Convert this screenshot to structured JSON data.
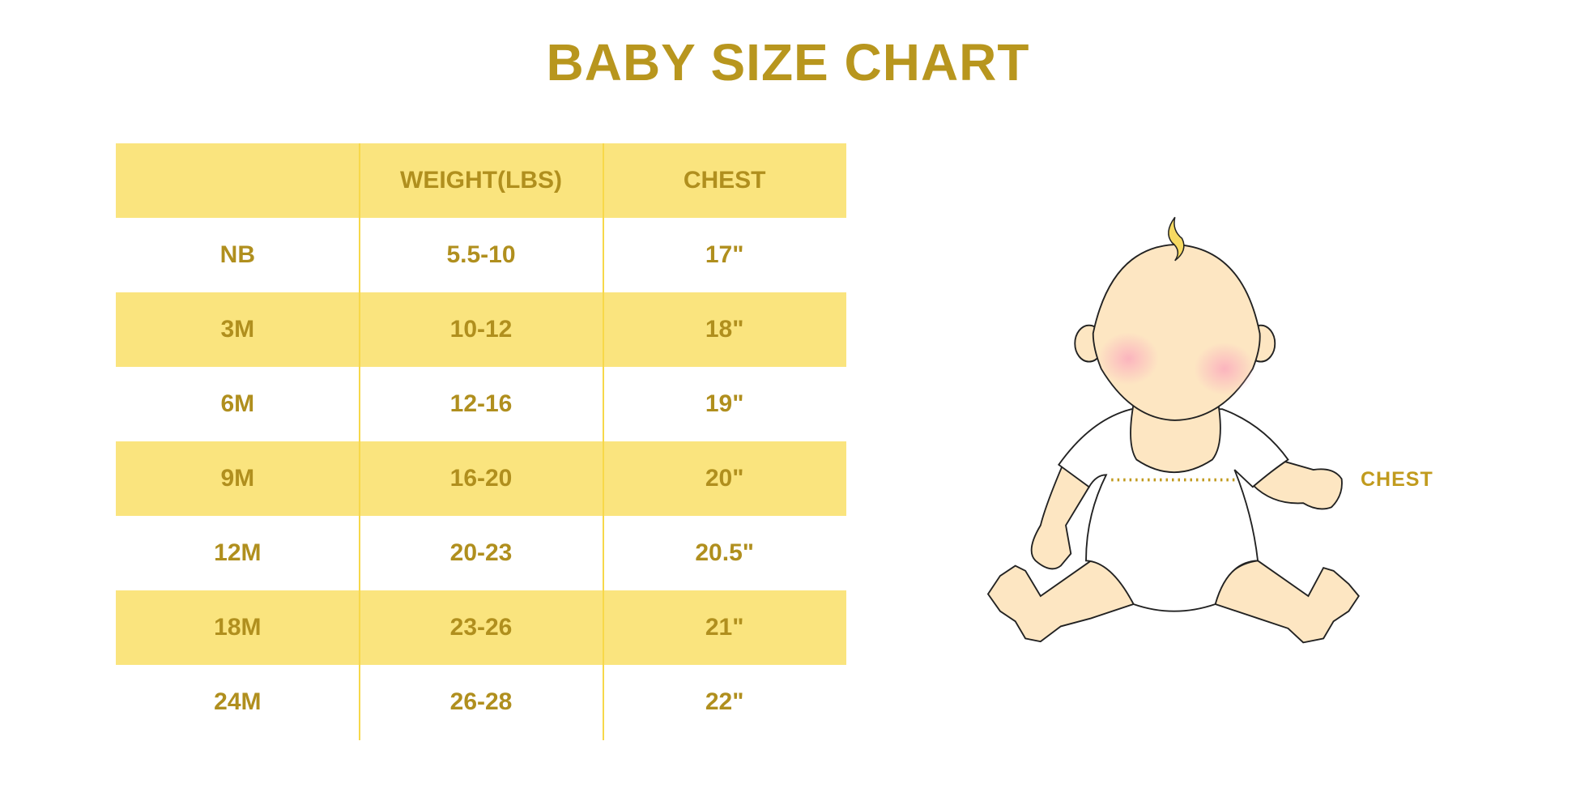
{
  "title": "BABY SIZE CHART",
  "colors": {
    "text": "#B08F1E",
    "row_shade": "#FAE47E",
    "divider": "#F7D84A"
  },
  "table": {
    "headers": [
      "",
      "WEIGHT(LBS)",
      "CHEST"
    ],
    "rows": [
      [
        "NB",
        "5.5-10",
        "17\""
      ],
      [
        "3M",
        "10-12",
        "18\""
      ],
      [
        "6M",
        "12-16",
        "19\""
      ],
      [
        "9M",
        "16-20",
        "20\""
      ],
      [
        "12M",
        "20-23",
        "20.5\""
      ],
      [
        "18M",
        "23-26",
        "21\""
      ],
      [
        "24M",
        "26-28",
        "22\""
      ]
    ]
  },
  "illustration": {
    "chest_label": "CHEST"
  }
}
